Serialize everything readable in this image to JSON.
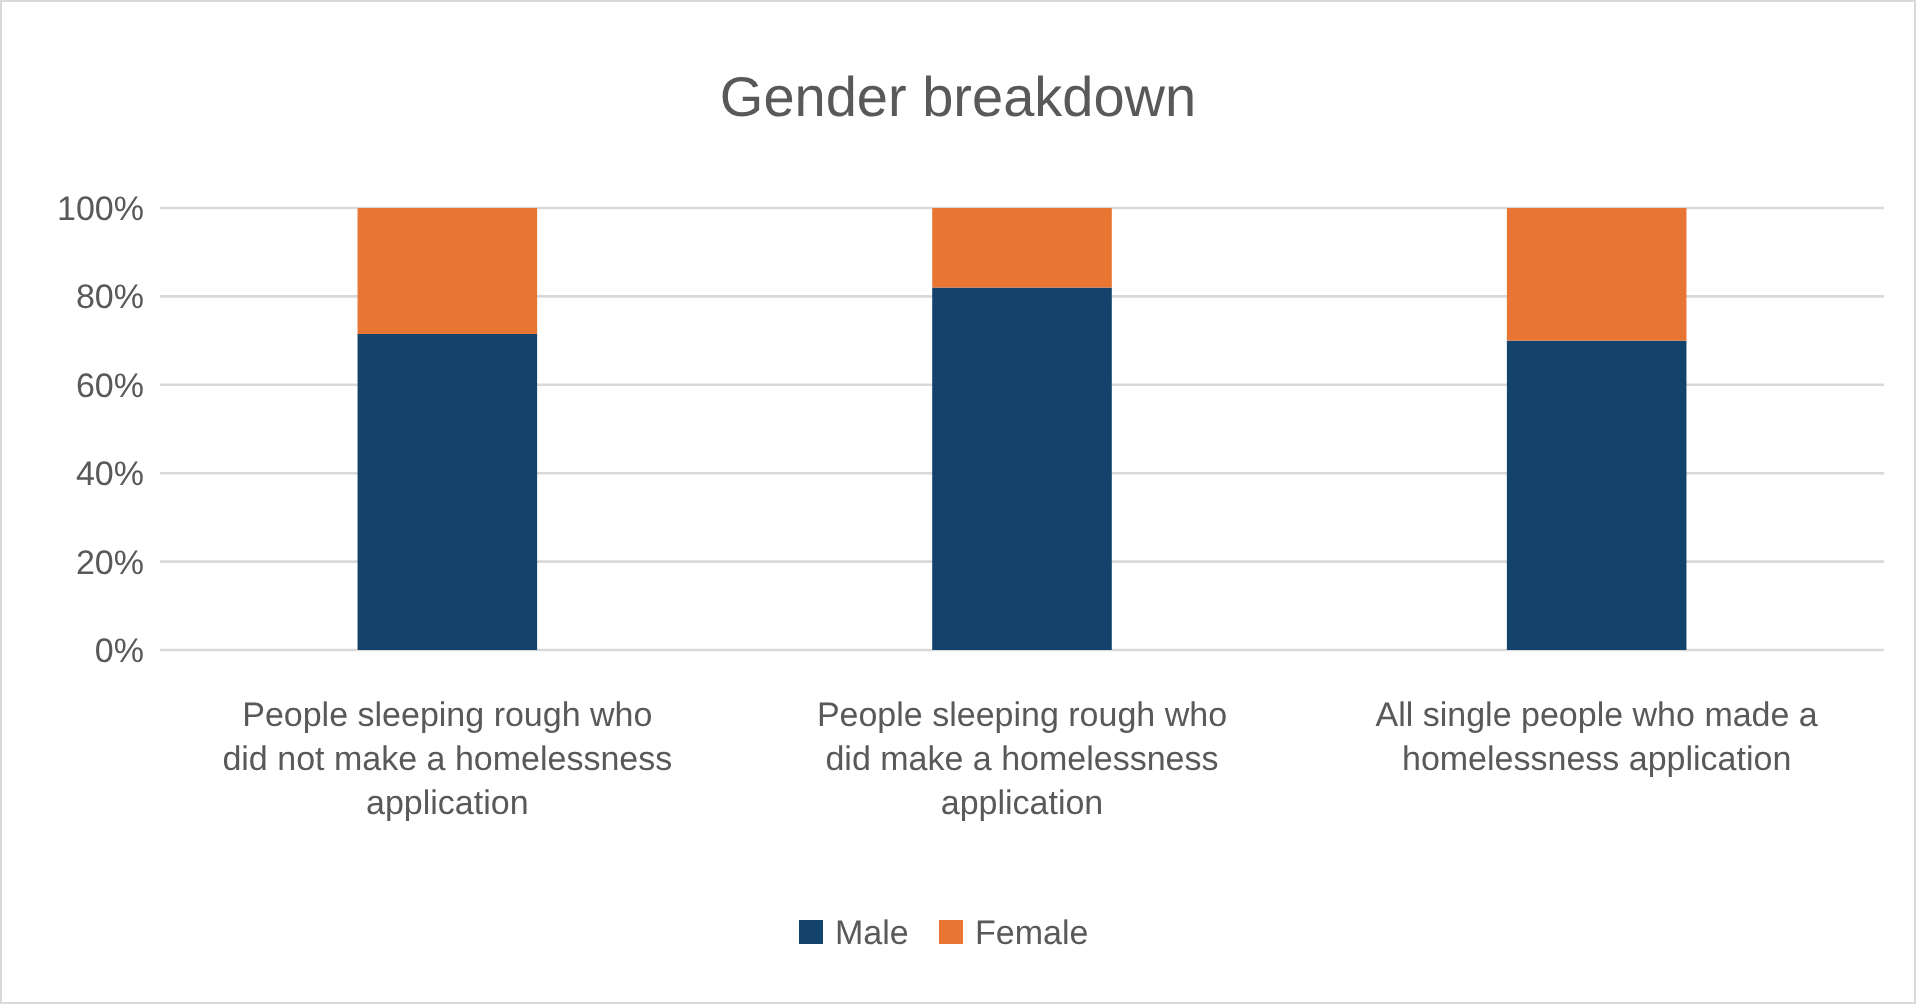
{
  "chart_data": {
    "type": "bar",
    "stacked": true,
    "title": "Gender breakdown",
    "categories": [
      "People sleeping rough who did not make a homelessness application",
      "People sleeping rough who did make a homelessness application",
      "All single people who made a homelessness application"
    ],
    "series": [
      {
        "name": "Male",
        "color": "#13436b",
        "values": [
          71.5,
          82,
          70
        ]
      },
      {
        "name": "Female",
        "color": "#e87532",
        "values": [
          28.5,
          18,
          30
        ]
      }
    ],
    "ylim": [
      0,
      100
    ],
    "yticks": [
      {
        "value": 0,
        "label": "0%"
      },
      {
        "value": 20,
        "label": "20%"
      },
      {
        "value": 40,
        "label": "40%"
      },
      {
        "value": 60,
        "label": "60%"
      },
      {
        "value": 80,
        "label": "80%"
      },
      {
        "value": 100,
        "label": "100%"
      }
    ],
    "grid": "y",
    "legend": "bottom"
  }
}
